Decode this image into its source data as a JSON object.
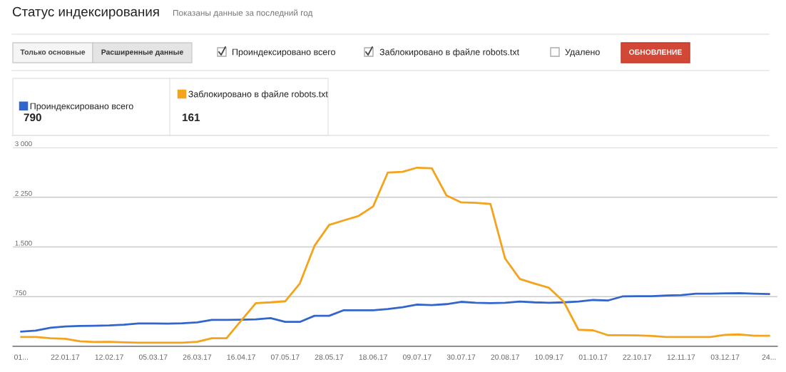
{
  "chart_data": {
    "type": "line",
    "title": "Статус индексирования",
    "subtitle": "Показаны данные за последний год",
    "annotations": [
      "Только основные",
      "Расширенные данные",
      "Проиндексировано всего",
      "Заблокировано в файле robots.txt",
      "Удалено",
      "ОБНОВЛЕНИЕ",
      "790",
      "161"
    ],
    "x": [
      "2017-01-01",
      "2017-01-08",
      "2017-01-15",
      "2017-01-22",
      "2017-01-29",
      "2017-02-05",
      "2017-02-12",
      "2017-02-19",
      "2017-02-26",
      "2017-03-05",
      "2017-03-12",
      "2017-03-19",
      "2017-03-26",
      "2017-04-02",
      "2017-04-09",
      "2017-04-16",
      "2017-04-23",
      "2017-04-30",
      "2017-05-07",
      "2017-05-14",
      "2017-05-21",
      "2017-05-28",
      "2017-06-04",
      "2017-06-11",
      "2017-06-18",
      "2017-06-25",
      "2017-07-02",
      "2017-07-09",
      "2017-07-16",
      "2017-07-23",
      "2017-07-30",
      "2017-08-06",
      "2017-08-13",
      "2017-08-20",
      "2017-08-27",
      "2017-09-03",
      "2017-09-10",
      "2017-09-17",
      "2017-09-24",
      "2017-10-01",
      "2017-10-08",
      "2017-10-15",
      "2017-10-22",
      "2017-10-29",
      "2017-11-05",
      "2017-11-12",
      "2017-11-19",
      "2017-11-26",
      "2017-12-03",
      "2017-12-10",
      "2017-12-17",
      "2017-12-24"
    ],
    "series": [
      {
        "name": "Проиндексировано всего",
        "color": "#3366cc",
        "values": [
          223,
          238,
          280,
          300,
          307,
          311,
          315,
          326,
          346,
          346,
          342,
          349,
          361,
          399,
          399,
          403,
          407,
          426,
          369,
          369,
          461,
          461,
          545,
          545,
          545,
          564,
          591,
          630,
          622,
          637,
          672,
          657,
          653,
          657,
          676,
          664,
          657,
          664,
          676,
          699,
          691,
          753,
          756,
          756,
          768,
          772,
          795,
          795,
          799,
          803,
          795,
          790
        ]
      },
      {
        "name": "Заблокировано в файле robots.txt",
        "color": "#f4a31c",
        "values": [
          142,
          142,
          123,
          115,
          77,
          65,
          69,
          61,
          54,
          54,
          54,
          54,
          69,
          123,
          123,
          388,
          653,
          664,
          680,
          948,
          1517,
          1832,
          1901,
          1966,
          2112,
          2623,
          2634,
          2696,
          2688,
          2277,
          2173,
          2166,
          2150,
          1325,
          1018,
          948,
          883,
          672,
          250,
          242,
          169,
          169,
          165,
          157,
          142,
          142,
          142,
          142,
          173,
          180,
          161,
          161
        ]
      }
    ],
    "xlim": [
      "2016-12-28",
      "2017-12-28"
    ],
    "xticks": [
      {
        "value": "2017-01-01",
        "label": "01..."
      },
      {
        "value": "2017-01-22",
        "label": "22.01.17"
      },
      {
        "value": "2017-02-12",
        "label": "12.02.17"
      },
      {
        "value": "2017-03-05",
        "label": "05.03.17"
      },
      {
        "value": "2017-03-26",
        "label": "26.03.17"
      },
      {
        "value": "2017-04-16",
        "label": "16.04.17"
      },
      {
        "value": "2017-05-07",
        "label": "07.05.17"
      },
      {
        "value": "2017-05-28",
        "label": "28.05.17"
      },
      {
        "value": "2017-06-18",
        "label": "18.06.17"
      },
      {
        "value": "2017-07-09",
        "label": "09.07.17"
      },
      {
        "value": "2017-07-30",
        "label": "30.07.17"
      },
      {
        "value": "2017-08-20",
        "label": "20.08.17"
      },
      {
        "value": "2017-09-10",
        "label": "10.09.17"
      },
      {
        "value": "2017-10-01",
        "label": "01.10.17"
      },
      {
        "value": "2017-10-22",
        "label": "22.10.17"
      },
      {
        "value": "2017-11-12",
        "label": "12.11.17"
      },
      {
        "value": "2017-12-03",
        "label": "03.12.17"
      },
      {
        "value": "2017-12-24",
        "label": "24..."
      }
    ],
    "ylim": [
      0,
      3000
    ],
    "yticks": [
      {
        "value": 0,
        "label": null
      },
      750,
      {
        "value": 1500,
        "label": "1.500"
      },
      {
        "value": 2250,
        "label": "2 250"
      },
      {
        "value": 3000,
        "label": "3 000"
      }
    ],
    "grid": "y",
    "legend": "top left",
    "marker": "none",
    "line_style": "solid"
  }
}
